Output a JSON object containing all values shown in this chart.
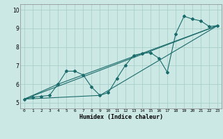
{
  "title": "",
  "xlabel": "Humidex (Indice chaleur)",
  "ylabel": "",
  "bg_color": "#cce8e4",
  "grid_color": "#aad0cc",
  "line_color": "#1a6b6b",
  "xlim": [
    -0.5,
    23.5
  ],
  "ylim": [
    4.7,
    10.3
  ],
  "xticks": [
    0,
    1,
    2,
    3,
    4,
    5,
    6,
    7,
    8,
    9,
    10,
    11,
    12,
    13,
    14,
    15,
    16,
    17,
    18,
    19,
    20,
    21,
    22,
    23
  ],
  "yticks": [
    5,
    6,
    7,
    8,
    9,
    10
  ],
  "series1_x": [
    0,
    1,
    2,
    3,
    4,
    5,
    6,
    7,
    8,
    9,
    10,
    11,
    12,
    13,
    14,
    15,
    16,
    17,
    18,
    19,
    20,
    21,
    22,
    23
  ],
  "series1_y": [
    5.2,
    5.3,
    5.35,
    5.4,
    6.0,
    6.7,
    6.7,
    6.5,
    5.85,
    5.4,
    5.55,
    6.3,
    7.0,
    7.55,
    7.65,
    7.7,
    7.4,
    6.65,
    8.7,
    9.65,
    9.5,
    9.4,
    9.1,
    9.15
  ],
  "series2_x": [
    0,
    23
  ],
  "series2_y": [
    5.2,
    9.15
  ],
  "series3_x": [
    0,
    9,
    23
  ],
  "series3_y": [
    5.2,
    5.4,
    9.15
  ],
  "series4_x": [
    0,
    4,
    23
  ],
  "series4_y": [
    5.2,
    6.0,
    9.15
  ]
}
